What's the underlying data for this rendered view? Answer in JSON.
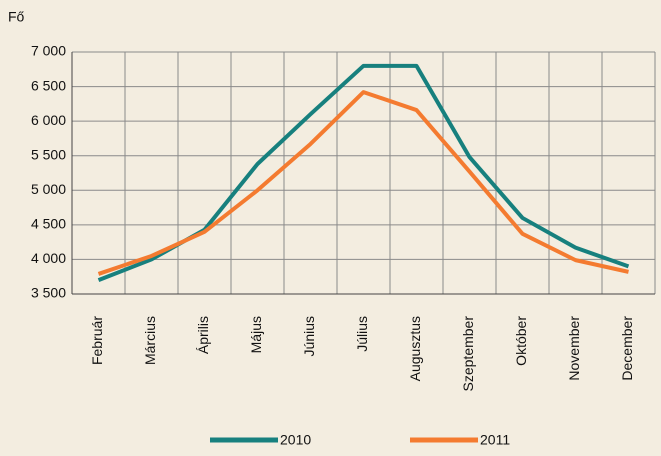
{
  "chart_data": {
    "type": "line",
    "y_axis_label": "Fő",
    "categories": [
      "Február",
      "Március",
      "Április",
      "Május",
      "Június",
      "Július",
      "Augusztus",
      "Szeptember",
      "Október",
      "November",
      "December"
    ],
    "series": [
      {
        "name": "2010",
        "color": "#17807e",
        "values": [
          3700,
          4000,
          4430,
          5380,
          6100,
          6800,
          6800,
          5480,
          4600,
          4170,
          3900
        ]
      },
      {
        "name": "2011",
        "color": "#f47b30",
        "values": [
          3790,
          4050,
          4400,
          5000,
          5670,
          6420,
          6160,
          5270,
          4370,
          3990,
          3820
        ]
      }
    ],
    "ylim": [
      3500,
      7000
    ],
    "yticks": [
      {
        "value": 3500,
        "label": "3 500"
      },
      {
        "value": 4000,
        "label": "4 000"
      },
      {
        "value": 4500,
        "label": "4 500"
      },
      {
        "value": 5000,
        "label": "5 000"
      },
      {
        "value": 5500,
        "label": "5 500"
      },
      {
        "value": 6000,
        "label": "6 000"
      },
      {
        "value": 6500,
        "label": "6 500"
      },
      {
        "value": 7000,
        "label": "7 000"
      }
    ],
    "grid": true
  }
}
